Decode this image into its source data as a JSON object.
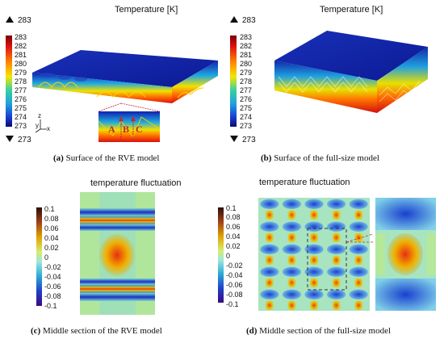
{
  "panel_a": {
    "title": "Temperature [K]",
    "max_marker": "283",
    "min_marker": "273",
    "scale_ticks": [
      "283",
      "282",
      "281",
      "280",
      "279",
      "278",
      "277",
      "276",
      "275",
      "274",
      "273"
    ],
    "axes": {
      "z": "z",
      "y": "y",
      "x": "x"
    },
    "labels": {
      "a": "A",
      "b": "B",
      "c": "C"
    },
    "caption_letter": "(a)",
    "caption_text": " Surface of the RVE model"
  },
  "panel_b": {
    "title": "Temperature [K]",
    "max_marker": "283",
    "min_marker": "273",
    "scale_ticks": [
      "283",
      "282",
      "281",
      "280",
      "279",
      "278",
      "277",
      "276",
      "275",
      "274",
      "273"
    ],
    "caption_letter": "(b)",
    "caption_text": " Surface of the full-size model"
  },
  "panel_c": {
    "title": "temperature fluctuation",
    "scale_ticks": [
      "0.1",
      "0.08",
      "0.06",
      "0.04",
      "0.02",
      "0",
      "-0.02",
      "-0.04",
      "-0.06",
      "-0.08",
      "-0.1"
    ],
    "caption_letter": "(c)",
    "caption_text": " Middle section of the RVE model"
  },
  "panel_d": {
    "title": "temperature fluctuation",
    "scale_ticks": [
      "0.1",
      "0.08",
      "0.06",
      "0.04",
      "0.02",
      "0",
      "-0.02",
      "-0.04",
      "-0.06",
      "-0.08",
      "-0.1"
    ],
    "caption_letter": "(d)",
    "caption_text": " Middle section of the full-size model"
  },
  "colors": {
    "hot": "#d7191c",
    "cold": "#0a1a9a",
    "neutral": "#6fd3c6",
    "annotation": "#c0282d"
  }
}
